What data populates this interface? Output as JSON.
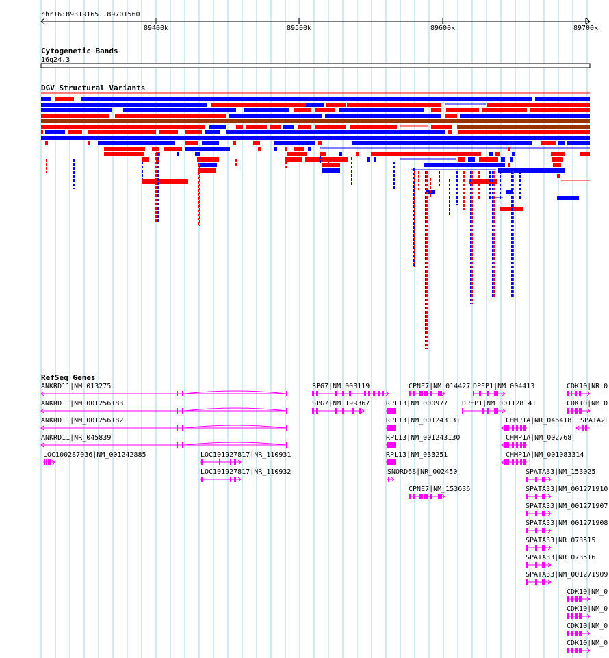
{
  "ruler": {
    "position": "chr16:89319165..89701560",
    "ticks": [
      "89400k",
      "89500k",
      "89600k",
      "89700k"
    ]
  },
  "tracks": {
    "cytoband": {
      "title": "Cytogenetic Bands",
      "band": "16q24.3"
    },
    "dgv": {
      "title": "DGV Structural Variants"
    },
    "refseq": {
      "title": "RefSeq Genes"
    }
  },
  "colors": {
    "grid": "#a9d4e6",
    "gain": "#ff0000",
    "loss": "#0000ff",
    "gainloss": "#993300",
    "gene": "#ff00ff"
  },
  "genes": [
    {
      "label": "ANKRD11|NM_013275"
    },
    {
      "label": "ANKRD11|NM_001256183"
    },
    {
      "label": "ANKRD11|NM_001256182"
    },
    {
      "label": "ANKRD11|NR_045839"
    },
    {
      "label": "LOC100287036|NM_001242885"
    },
    {
      "label": "LOC101927817|NR_110931"
    },
    {
      "label": "LOC101927817|NR_110932"
    },
    {
      "label": "SPG7|NM_003119"
    },
    {
      "label": "SPG7|NM_199367"
    },
    {
      "label": "RPL13|NM_000977"
    },
    {
      "label": "RPL13|NM_001243131"
    },
    {
      "label": "RPL13|NM_001243130"
    },
    {
      "label": "RPL13|NM_033251"
    },
    {
      "label": "SNORD68|NR_002450"
    },
    {
      "label": "CPNE7|NM_014427"
    },
    {
      "label": "CPNE7|NM_153636"
    },
    {
      "label": "DPEP1|NM_004413"
    },
    {
      "label": "DPEP1|NM_001128141"
    },
    {
      "label": "CHMP1A|NR_046418"
    },
    {
      "label": "CHMP1A|NM_002768"
    },
    {
      "label": "CHMP1A|NM_001083314"
    },
    {
      "label": "SPATA33|NM_153025"
    },
    {
      "label": "SPATA33|NM_001271910"
    },
    {
      "label": "SPATA33|NM_001271907"
    },
    {
      "label": "SPATA33|NM_001271908"
    },
    {
      "label": "SPATA33|NR_073515"
    },
    {
      "label": "SPATA33|NR_073516"
    },
    {
      "label": "SPATA33|NM_001271909"
    },
    {
      "label": "CDK10|NR_0"
    },
    {
      "label": "CDK10|NM_0"
    },
    {
      "label": "SPATA2L"
    },
    {
      "label": "CDK10|NM_0"
    },
    {
      "label": "CDK10|NM_0"
    },
    {
      "label": "CDK10|NM_0"
    },
    {
      "label": "CDK10|NM_0"
    }
  ]
}
